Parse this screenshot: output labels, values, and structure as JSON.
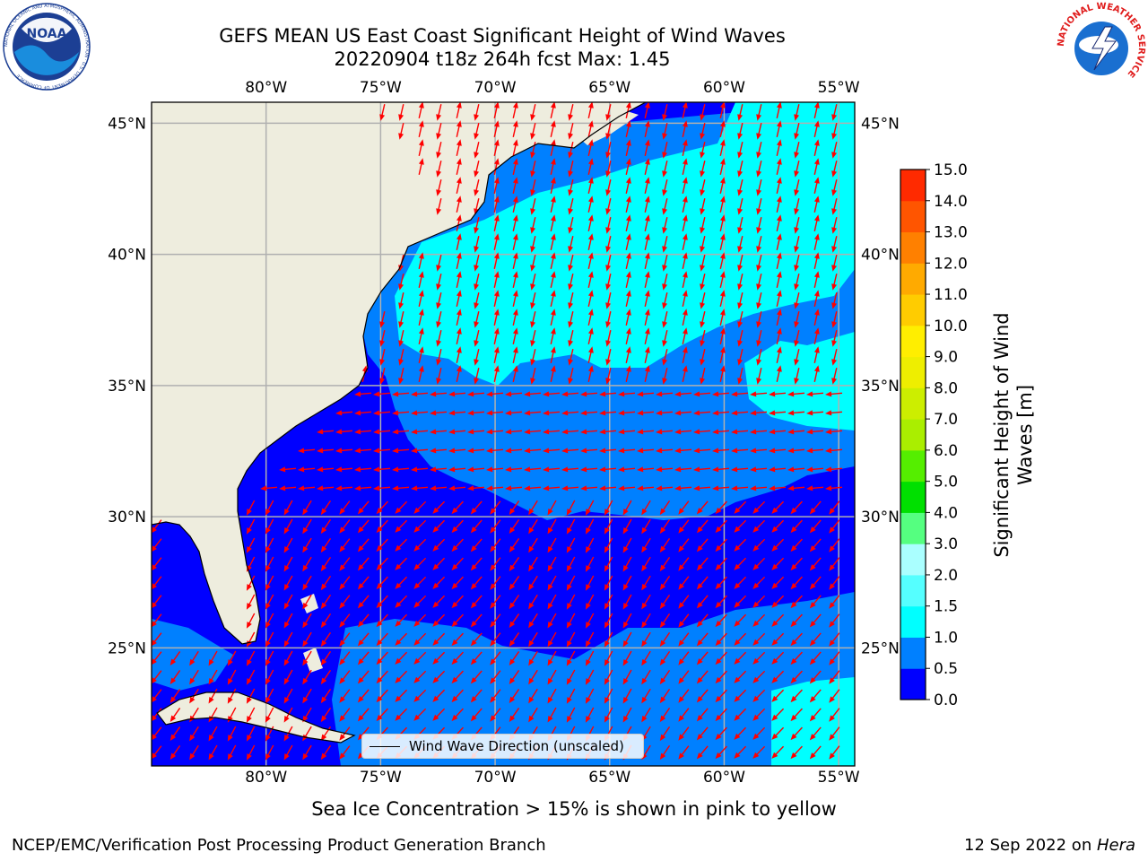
{
  "header": {
    "title_line1": "GEFS MEAN US East Coast Significant Height of Wind Waves",
    "title_line2": "20220904 t18z 264h fcst   Max: 1.45"
  },
  "logos": {
    "left_name": "NOAA",
    "left_ring": "NATIONAL OCEANIC AND ATMOSPHERIC ADMINISTRATION · U.S. DEPARTMENT OF COMMERCE",
    "right_ring": "NATIONAL WEATHER SERVICE"
  },
  "map": {
    "lon_labels": [
      "80°W",
      "75°W",
      "70°W",
      "65°W",
      "60°W",
      "55°W"
    ],
    "lat_labels": [
      "45°N",
      "40°N",
      "35°N",
      "30°N",
      "25°N"
    ],
    "lon_values": [
      -80,
      -75,
      -70,
      -65,
      -60,
      -55
    ],
    "lat_values": [
      45,
      40,
      35,
      30,
      25
    ],
    "extent": {
      "lon_min": -85,
      "lon_max": -54.3,
      "lat_min": 20.5,
      "lat_max": 45.8
    },
    "legend_label": "Wind Wave Direction (unscaled)",
    "colors": {
      "land": "#eeedde",
      "ocean_low": "#0000ff",
      "ocean_mid": "#0080ff",
      "ocean_high": "#00ffff",
      "arrow": "#ff0000",
      "grid": "#b0b0b0"
    }
  },
  "colorbar": {
    "label_line1": "Significant Height of Wind",
    "label_line2": "Waves [m]",
    "tick_labels": [
      "0.0",
      "0.5",
      "1.0",
      "1.5",
      "2.0",
      "3.0",
      "4.0",
      "5.0",
      "6.0",
      "7.0",
      "8.0",
      "9.0",
      "10.0",
      "11.0",
      "12.0",
      "13.0",
      "14.0",
      "15.0"
    ],
    "colors": [
      "#0000ff",
      "#0080ff",
      "#00ffff",
      "#55ffff",
      "#aaffff",
      "#55ff80",
      "#00e000",
      "#55ee00",
      "#aaee00",
      "#ccee00",
      "#eeee00",
      "#ffee00",
      "#ffcc00",
      "#ffaa00",
      "#ff8000",
      "#ff5500",
      "#ff2a00",
      "#ff0000"
    ]
  },
  "footer": {
    "caption": "Sea Ice Concentration > 15% is shown in pink to yellow",
    "left": "NCEP/EMC/Verification Post Processing Product Generation Branch",
    "right_date": "12 Sep 2022 on ",
    "right_machine": "Hera"
  }
}
